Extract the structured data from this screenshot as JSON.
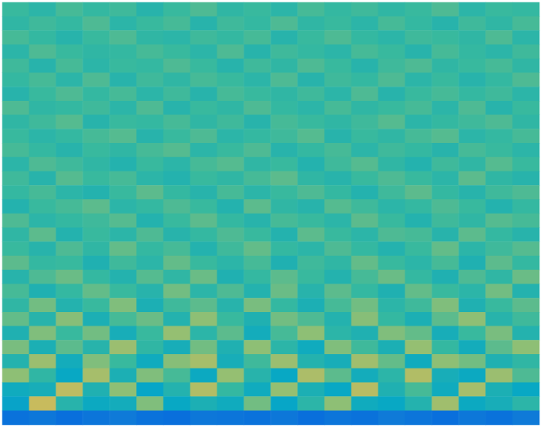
{
  "chart_data": {
    "type": "heatmap",
    "tick_labels": false,
    "grid": false,
    "zlim": [
      0,
      1
    ],
    "cells": [
      [
        0.5,
        0.47,
        0.52,
        0.49,
        0.51,
        0.46,
        0.5,
        0.53,
        0.48,
        0.5,
        0.47,
        0.52,
        0.49,
        0.51,
        0.48,
        0.5,
        0.53,
        0.47,
        0.5,
        0.49
      ],
      [
        0.48,
        0.51,
        0.49,
        0.53,
        0.47,
        0.5,
        0.52,
        0.46,
        0.51,
        0.49,
        0.53,
        0.48,
        0.5,
        0.47,
        0.52,
        0.49,
        0.46,
        0.51,
        0.48,
        0.52
      ],
      [
        0.52,
        0.49,
        0.46,
        0.5,
        0.53,
        0.48,
        0.47,
        0.51,
        0.49,
        0.52,
        0.46,
        0.5,
        0.53,
        0.49,
        0.47,
        0.51,
        0.5,
        0.48,
        0.53,
        0.47
      ],
      [
        0.47,
        0.53,
        0.5,
        0.48,
        0.49,
        0.52,
        0.5,
        0.47,
        0.53,
        0.46,
        0.51,
        0.49,
        0.47,
        0.52,
        0.5,
        0.46,
        0.52,
        0.49,
        0.47,
        0.51
      ],
      [
        0.51,
        0.46,
        0.52,
        0.47,
        0.5,
        0.49,
        0.53,
        0.5,
        0.46,
        0.51,
        0.48,
        0.53,
        0.5,
        0.46,
        0.51,
        0.53,
        0.48,
        0.5,
        0.52,
        0.48
      ],
      [
        0.49,
        0.52,
        0.47,
        0.53,
        0.46,
        0.51,
        0.48,
        0.52,
        0.5,
        0.47,
        0.53,
        0.46,
        0.51,
        0.49,
        0.53,
        0.47,
        0.5,
        0.46,
        0.49,
        0.53
      ],
      [
        0.46,
        0.5,
        0.53,
        0.49,
        0.52,
        0.47,
        0.51,
        0.46,
        0.52,
        0.5,
        0.48,
        0.51,
        0.47,
        0.53,
        0.46,
        0.5,
        0.52,
        0.49,
        0.51,
        0.47
      ],
      [
        0.53,
        0.48,
        0.49,
        0.51,
        0.47,
        0.53,
        0.46,
        0.5,
        0.48,
        0.53,
        0.49,
        0.47,
        0.52,
        0.48,
        0.5,
        0.52,
        0.47,
        0.53,
        0.46,
        0.5
      ],
      [
        0.48,
        0.51,
        0.54,
        0.46,
        0.5,
        0.49,
        0.52,
        0.48,
        0.51,
        0.46,
        0.52,
        0.5,
        0.48,
        0.51,
        0.54,
        0.47,
        0.49,
        0.51,
        0.53,
        0.48
      ],
      [
        0.5,
        0.47,
        0.49,
        0.52,
        0.54,
        0.46,
        0.5,
        0.53,
        0.47,
        0.49,
        0.51,
        0.54,
        0.46,
        0.5,
        0.48,
        0.52,
        0.54,
        0.47,
        0.49,
        0.52
      ],
      [
        0.52,
        0.49,
        0.46,
        0.5,
        0.48,
        0.52,
        0.54,
        0.47,
        0.5,
        0.53,
        0.46,
        0.49,
        0.52,
        0.47,
        0.51,
        0.49,
        0.46,
        0.52,
        0.5,
        0.47
      ],
      [
        0.47,
        0.53,
        0.51,
        0.48,
        0.45,
        0.5,
        0.47,
        0.52,
        0.54,
        0.48,
        0.5,
        0.45,
        0.51,
        0.54,
        0.48,
        0.45,
        0.51,
        0.48,
        0.54,
        0.5
      ],
      [
        0.51,
        0.46,
        0.54,
        0.5,
        0.52,
        0.47,
        0.45,
        0.5,
        0.48,
        0.52,
        0.55,
        0.48,
        0.46,
        0.5,
        0.53,
        0.5,
        0.47,
        0.55,
        0.48,
        0.46
      ],
      [
        0.49,
        0.52,
        0.47,
        0.45,
        0.5,
        0.55,
        0.49,
        0.46,
        0.52,
        0.47,
        0.5,
        0.53,
        0.49,
        0.45,
        0.51,
        0.55,
        0.49,
        0.46,
        0.51,
        0.53
      ],
      [
        0.45,
        0.5,
        0.52,
        0.55,
        0.47,
        0.49,
        0.53,
        0.5,
        0.45,
        0.55,
        0.48,
        0.46,
        0.54,
        0.51,
        0.47,
        0.49,
        0.53,
        0.5,
        0.45,
        0.49
      ],
      [
        0.53,
        0.47,
        0.49,
        0.51,
        0.54,
        0.45,
        0.5,
        0.55,
        0.49,
        0.46,
        0.52,
        0.5,
        0.47,
        0.55,
        0.5,
        0.45,
        0.51,
        0.48,
        0.54,
        0.52
      ],
      [
        0.48,
        0.55,
        0.45,
        0.5,
        0.47,
        0.53,
        0.46,
        0.49,
        0.53,
        0.5,
        0.45,
        0.55,
        0.5,
        0.47,
        0.53,
        0.52,
        0.46,
        0.55,
        0.49,
        0.46
      ],
      [
        0.5,
        0.46,
        0.53,
        0.48,
        0.56,
        0.49,
        0.52,
        0.45,
        0.51,
        0.56,
        0.49,
        0.47,
        0.53,
        0.49,
        0.45,
        0.5,
        0.56,
        0.47,
        0.51,
        0.54
      ],
      [
        0.55,
        0.49,
        0.5,
        0.44,
        0.51,
        0.47,
        0.56,
        0.5,
        0.47,
        0.52,
        0.44,
        0.51,
        0.48,
        0.56,
        0.5,
        0.47,
        0.52,
        0.44,
        0.55,
        0.49
      ],
      [
        0.46,
        0.53,
        0.57,
        0.49,
        0.45,
        0.54,
        0.48,
        0.57,
        0.44,
        0.49,
        0.55,
        0.5,
        0.45,
        0.52,
        0.57,
        0.49,
        0.44,
        0.53,
        0.48,
        0.57
      ],
      [
        0.52,
        0.44,
        0.49,
        0.56,
        0.5,
        0.46,
        0.58,
        0.47,
        0.53,
        0.45,
        0.57,
        0.46,
        0.55,
        0.49,
        0.44,
        0.56,
        0.5,
        0.47,
        0.58,
        0.45
      ],
      [
        0.48,
        0.58,
        0.45,
        0.5,
        0.6,
        0.43,
        0.51,
        0.55,
        0.46,
        0.59,
        0.49,
        0.43,
        0.52,
        0.58,
        0.47,
        0.51,
        0.6,
        0.44,
        0.5,
        0.55
      ],
      [
        0.56,
        0.46,
        0.61,
        0.43,
        0.52,
        0.57,
        0.45,
        0.62,
        0.5,
        0.44,
        0.58,
        0.53,
        0.45,
        0.61,
        0.49,
        0.43,
        0.55,
        0.62,
        0.46,
        0.51
      ],
      [
        0.44,
        0.6,
        0.5,
        0.58,
        0.42,
        0.5,
        0.63,
        0.47,
        0.55,
        0.41,
        0.52,
        0.62,
        0.47,
        0.44,
        0.6,
        0.56,
        0.42,
        0.5,
        0.59,
        0.45
      ],
      [
        0.59,
        0.43,
        0.55,
        0.46,
        0.64,
        0.48,
        0.42,
        0.58,
        0.44,
        0.62,
        0.47,
        0.4,
        0.6,
        0.51,
        0.43,
        0.63,
        0.49,
        0.41,
        0.55,
        0.62
      ],
      [
        0.45,
        0.64,
        0.41,
        0.6,
        0.5,
        0.4,
        0.61,
        0.66,
        0.42,
        0.51,
        0.64,
        0.45,
        0.42,
        0.65,
        0.56,
        0.4,
        0.62,
        0.58,
        0.44,
        0.48
      ],
      [
        0.62,
        0.48,
        0.38,
        0.66,
        0.43,
        0.6,
        0.52,
        0.39,
        0.63,
        0.46,
        0.38,
        0.67,
        0.55,
        0.41,
        0.47,
        0.68,
        0.42,
        0.39,
        0.64,
        0.53
      ],
      [
        0.4,
        0.42,
        0.7,
        0.44,
        0.62,
        0.37,
        0.45,
        0.68,
        0.49,
        0.4,
        0.63,
        0.43,
        0.38,
        0.69,
        0.44,
        0.52,
        0.4,
        0.66,
        0.43,
        0.38
      ],
      [
        0.36,
        0.72,
        0.46,
        0.39,
        0.41,
        0.6,
        0.38,
        0.43,
        0.4,
        0.58,
        0.37,
        0.47,
        0.62,
        0.4,
        0.38,
        0.45,
        0.65,
        0.39,
        0.42,
        0.47
      ],
      [
        0.18,
        0.2,
        0.17,
        0.19,
        0.21,
        0.18,
        0.17,
        0.2,
        0.19,
        0.18,
        0.2,
        0.17,
        0.19,
        0.18,
        0.21,
        0.19,
        0.17,
        0.2,
        0.18,
        0.21
      ]
    ]
  }
}
